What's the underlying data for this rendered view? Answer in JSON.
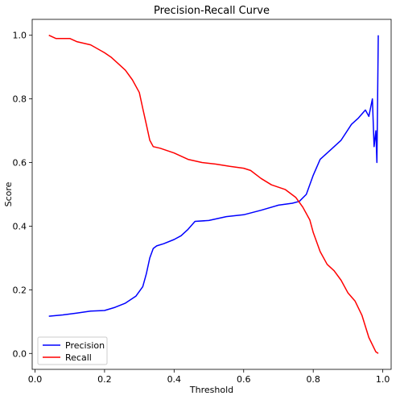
{
  "chart_data": {
    "type": "line",
    "title": "Precision-Recall Curve",
    "xlabel": "Threshold",
    "ylabel": "Score",
    "xlim": [
      -0.008,
      1.024
    ],
    "ylim": [
      -0.05,
      1.05
    ],
    "xticks": [
      0.0,
      0.2,
      0.4,
      0.6,
      0.8,
      1.0
    ],
    "xtick_labels": [
      "0.0",
      "0.2",
      "0.4",
      "0.6",
      "0.8",
      "1.0"
    ],
    "yticks": [
      0.0,
      0.2,
      0.4,
      0.6,
      0.8,
      1.0
    ],
    "ytick_labels": [
      "0.0",
      "0.2",
      "0.4",
      "0.6",
      "0.8",
      "1.0"
    ],
    "grid": false,
    "legend": "bottom-left",
    "series": [
      {
        "name": "Precision",
        "color": "#0000ff",
        "x": [
          0.04,
          0.08,
          0.12,
          0.16,
          0.2,
          0.23,
          0.26,
          0.29,
          0.31,
          0.32,
          0.33,
          0.34,
          0.35,
          0.37,
          0.4,
          0.42,
          0.44,
          0.46,
          0.5,
          0.55,
          0.6,
          0.65,
          0.7,
          0.74,
          0.76,
          0.78,
          0.8,
          0.82,
          0.85,
          0.88,
          0.91,
          0.93,
          0.95,
          0.96,
          0.97,
          0.975,
          0.98,
          0.983,
          0.985,
          0.987
        ],
        "y": [
          0.117,
          0.121,
          0.127,
          0.133,
          0.135,
          0.145,
          0.158,
          0.18,
          0.21,
          0.25,
          0.3,
          0.33,
          0.338,
          0.345,
          0.358,
          0.37,
          0.39,
          0.415,
          0.418,
          0.43,
          0.436,
          0.45,
          0.466,
          0.472,
          0.478,
          0.5,
          0.56,
          0.61,
          0.64,
          0.67,
          0.72,
          0.74,
          0.765,
          0.745,
          0.8,
          0.65,
          0.7,
          0.6,
          0.78,
          1.0
        ]
      },
      {
        "name": "Recall",
        "color": "#ff0000",
        "x": [
          0.04,
          0.06,
          0.1,
          0.12,
          0.16,
          0.2,
          0.22,
          0.24,
          0.26,
          0.28,
          0.3,
          0.31,
          0.32,
          0.33,
          0.34,
          0.36,
          0.4,
          0.44,
          0.48,
          0.52,
          0.56,
          0.6,
          0.62,
          0.65,
          0.68,
          0.72,
          0.75,
          0.77,
          0.79,
          0.8,
          0.82,
          0.84,
          0.86,
          0.88,
          0.9,
          0.92,
          0.94,
          0.96,
          0.98,
          0.987
        ],
        "y": [
          1.0,
          0.99,
          0.99,
          0.98,
          0.97,
          0.945,
          0.93,
          0.91,
          0.89,
          0.86,
          0.82,
          0.77,
          0.72,
          0.67,
          0.65,
          0.645,
          0.63,
          0.61,
          0.6,
          0.595,
          0.588,
          0.582,
          0.575,
          0.55,
          0.53,
          0.515,
          0.49,
          0.46,
          0.42,
          0.38,
          0.32,
          0.28,
          0.26,
          0.23,
          0.19,
          0.165,
          0.12,
          0.05,
          0.005,
          0.0
        ]
      }
    ]
  }
}
